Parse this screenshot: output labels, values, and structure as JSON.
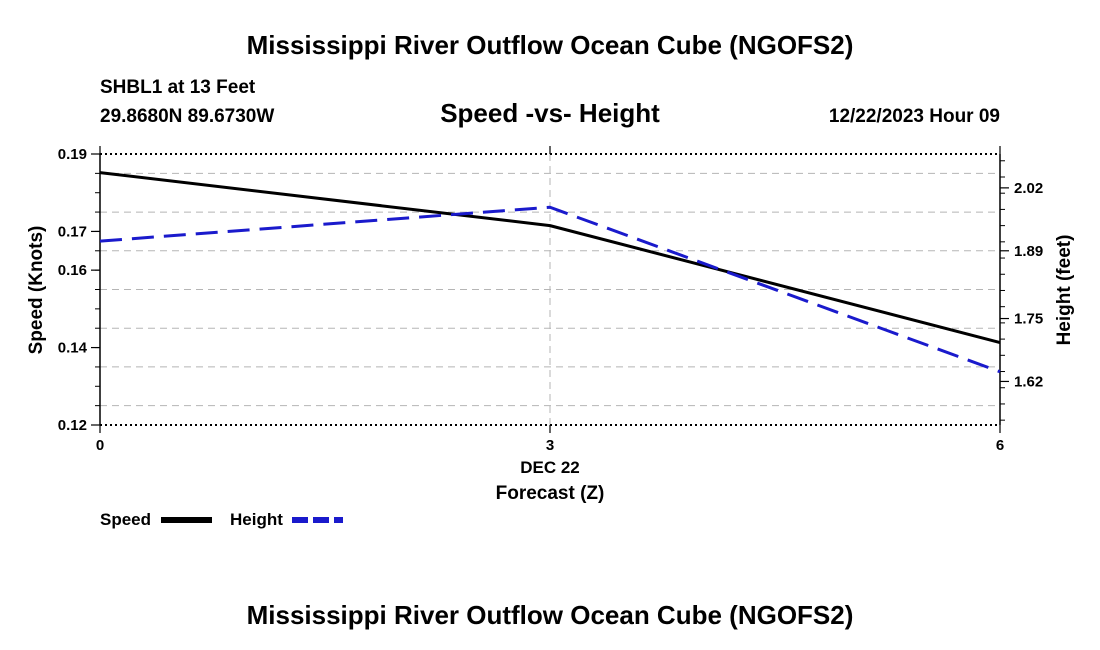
{
  "header": {
    "title": "Mississippi River Outflow Ocean Cube (NGOFS2)",
    "station": "SHBL1 at 13 Feet",
    "coords": "29.8680N  89.6730W",
    "date": "12/22/2023 Hour 09"
  },
  "footer": {
    "title": "Mississippi River Outflow Ocean Cube (NGOFS2)"
  },
  "chart_data": {
    "type": "line",
    "title": "Speed -vs- Height",
    "xlabel": "Forecast (Z)",
    "x_date_label": "DEC 22",
    "x": [
      0,
      3,
      6
    ],
    "xlim": [
      0,
      6
    ],
    "x_ticks": [
      "0",
      "3",
      "6"
    ],
    "y_left": {
      "label": "Speed (Knots)",
      "lim": [
        0.12,
        0.19
      ],
      "ticks": [
        "0.19",
        "0.17",
        "0.16",
        "0.14",
        "0.12"
      ]
    },
    "y_right": {
      "label": "Height (feet)",
      "lim": [
        1.53,
        2.09
      ],
      "ticks": [
        "2.02",
        "1.89",
        "1.75",
        "1.62"
      ]
    },
    "series": [
      {
        "name": "Speed",
        "axis": "left",
        "color": "#000000",
        "style": "solid",
        "values": [
          0.1852,
          0.1715,
          0.1413
        ]
      },
      {
        "name": "Height",
        "axis": "right",
        "color": "#1a1acc",
        "style": "dashed",
        "values": [
          1.91,
          1.98,
          1.64
        ]
      }
    ],
    "grid": true
  }
}
